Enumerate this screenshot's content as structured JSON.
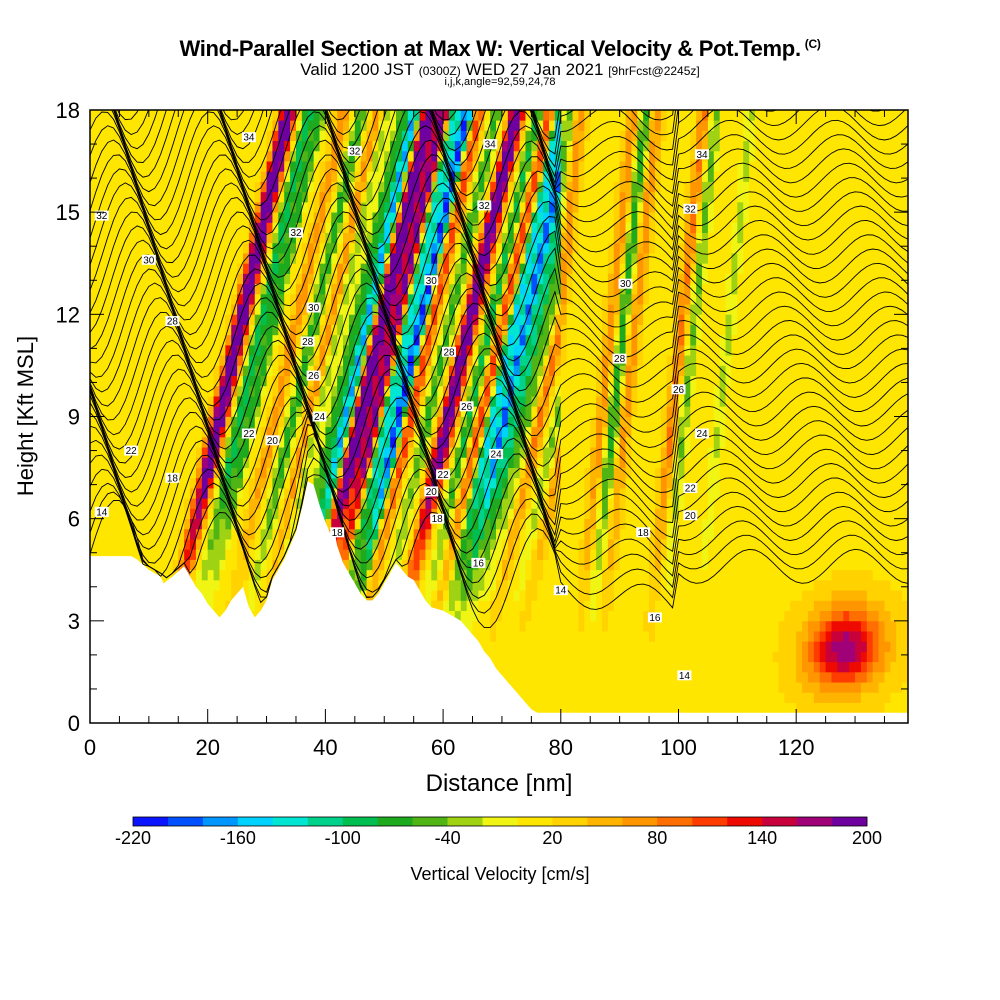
{
  "title": {
    "main": "Wind-Parallel Section at Max W: Vertical Velocity & Pot.Temp.",
    "copyright": "(C)",
    "valid_prefix": "Valid 1200 JST",
    "valid_z": "(0300Z)",
    "valid_date": "WED 27 Jan 2021",
    "forecast": "[9hrFcst@2245z]",
    "indices": "i,j,k,angle=92,59,24,78"
  },
  "chart_data": {
    "type": "heatmap",
    "xlabel": "Distance [nm]",
    "ylabel": "Height [Kft MSL]",
    "xlim": [
      0,
      139
    ],
    "ylim": [
      0,
      18
    ],
    "xticks": [
      0,
      20,
      40,
      60,
      80,
      100,
      120
    ],
    "yticks": [
      0,
      3,
      6,
      9,
      12,
      15,
      18
    ],
    "colorbar": {
      "label": "Vertical Velocity [cm/s]",
      "min": -220,
      "max": 200,
      "step": 20,
      "tick_labels": [
        "-220",
        "-160",
        "-100",
        "-40",
        "20",
        "80",
        "140",
        "200"
      ],
      "tick_values": [
        -220,
        -160,
        -100,
        -40,
        20,
        80,
        140,
        200
      ],
      "colors": [
        "#0a14ff",
        "#0050ff",
        "#0096ff",
        "#00d2ff",
        "#00e6d2",
        "#00d28c",
        "#00be50",
        "#1eaa1e",
        "#50b414",
        "#a0d214",
        "#f0f514",
        "#ffe600",
        "#ffd200",
        "#ffb400",
        "#ff9600",
        "#ff6e00",
        "#ff3c00",
        "#ee0a00",
        "#c8003c",
        "#a00078",
        "#6e00a0"
      ]
    },
    "terrain_profile": [
      [
        0,
        4.9
      ],
      [
        7,
        4.9
      ],
      [
        8,
        4.8
      ],
      [
        10,
        4.5
      ],
      [
        12,
        4.3
      ],
      [
        12.5,
        4.1
      ],
      [
        14,
        4.3
      ],
      [
        16,
        4.6
      ],
      [
        18,
        4.0
      ],
      [
        19,
        3.8
      ],
      [
        20,
        3.5
      ],
      [
        21,
        3.3
      ],
      [
        22,
        3.1
      ],
      [
        23,
        3.3
      ],
      [
        24,
        3.6
      ],
      [
        26,
        4.0
      ],
      [
        27,
        3.4
      ],
      [
        28,
        3.1
      ],
      [
        29,
        3.3
      ],
      [
        30,
        3.6
      ],
      [
        31,
        4.2
      ],
      [
        33,
        4.8
      ],
      [
        35,
        5.6
      ],
      [
        36,
        6.3
      ],
      [
        37,
        7.1
      ],
      [
        38,
        7.0
      ],
      [
        39,
        6.4
      ],
      [
        40,
        5.9
      ],
      [
        41,
        5.5
      ],
      [
        41.5,
        5.7
      ],
      [
        42,
        5.2
      ],
      [
        43,
        4.7
      ],
      [
        44,
        4.4
      ],
      [
        45,
        4.1
      ],
      [
        46,
        3.8
      ],
      [
        47,
        3.6
      ],
      [
        48,
        3.6
      ],
      [
        49,
        3.8
      ],
      [
        50,
        4.1
      ],
      [
        51,
        4.4
      ],
      [
        52,
        4.7
      ],
      [
        53,
        4.5
      ],
      [
        54,
        4.3
      ],
      [
        55,
        4.2
      ],
      [
        56,
        3.9
      ],
      [
        57,
        3.6
      ],
      [
        58,
        3.4
      ],
      [
        60,
        3.3
      ],
      [
        61,
        3.2
      ],
      [
        62,
        3.1
      ],
      [
        63,
        3.0
      ],
      [
        64,
        2.8
      ],
      [
        65,
        2.6
      ],
      [
        66,
        2.4
      ],
      [
        67,
        2.1
      ],
      [
        68,
        1.9
      ],
      [
        69,
        1.6
      ],
      [
        70,
        1.4
      ],
      [
        71,
        1.2
      ],
      [
        72,
        1.0
      ],
      [
        73,
        0.8
      ],
      [
        74,
        0.6
      ],
      [
        75,
        0.4
      ],
      [
        76,
        0.3
      ],
      [
        139,
        0.3
      ]
    ],
    "w_features": [
      {
        "x": 15,
        "w": 130
      },
      {
        "x": 16,
        "w": 160
      },
      {
        "x": 19,
        "w": -110
      },
      {
        "x": 21,
        "w": -90
      },
      {
        "x": 25,
        "w": 60
      },
      {
        "x": 28,
        "w": -90
      },
      {
        "x": 31,
        "w": 80
      },
      {
        "x": 32,
        "w": -70
      },
      {
        "x": 35,
        "w": -90
      },
      {
        "x": 37,
        "w": -180
      },
      {
        "x": 39,
        "w": 140
      },
      {
        "x": 40,
        "w": 160
      },
      {
        "x": 42,
        "w": 180
      },
      {
        "x": 44,
        "w": -150
      },
      {
        "x": 46,
        "w": -220
      },
      {
        "x": 48,
        "w": 100
      },
      {
        "x": 51,
        "w": -80
      },
      {
        "x": 54,
        "w": 150
      },
      {
        "x": 55,
        "w": 120
      },
      {
        "x": 58,
        "w": -100
      },
      {
        "x": 60,
        "w": 100
      },
      {
        "x": 62,
        "w": -160
      },
      {
        "x": 64,
        "w": -200
      },
      {
        "x": 66,
        "w": -120
      },
      {
        "x": 68,
        "w": -60
      },
      {
        "x": 70,
        "w": 70
      },
      {
        "x": 73,
        "w": -60
      },
      {
        "x": 75,
        "w": 60
      },
      {
        "x": 84,
        "w": 60
      },
      {
        "x": 86,
        "w": -90
      },
      {
        "x": 88,
        "w": 60
      },
      {
        "x": 96,
        "w": 70
      },
      {
        "x": 98,
        "w": -60
      },
      {
        "x": 104,
        "w": -40
      },
      {
        "x": 128,
        "w": 90
      },
      {
        "x": 131,
        "w": 80
      }
    ],
    "theta_contour_labels": [
      {
        "text": "34",
        "x": 27,
        "y": 17.2
      },
      {
        "text": "32",
        "x": 45,
        "y": 16.8
      },
      {
        "text": "34",
        "x": 68,
        "y": 17.0
      },
      {
        "text": "34",
        "x": 104,
        "y": 16.7
      },
      {
        "text": "32",
        "x": 2,
        "y": 14.9
      },
      {
        "text": "32",
        "x": 35,
        "y": 14.4
      },
      {
        "text": "32",
        "x": 67,
        "y": 15.2
      },
      {
        "text": "32",
        "x": 102,
        "y": 15.1
      },
      {
        "text": "30",
        "x": 10,
        "y": 13.6
      },
      {
        "text": "30",
        "x": 58,
        "y": 13.0
      },
      {
        "text": "30",
        "x": 91,
        "y": 12.9
      },
      {
        "text": "28",
        "x": 14,
        "y": 11.8
      },
      {
        "text": "30",
        "x": 38,
        "y": 12.2
      },
      {
        "text": "28",
        "x": 37,
        "y": 11.2
      },
      {
        "text": "28",
        "x": 61,
        "y": 10.9
      },
      {
        "text": "28",
        "x": 90,
        "y": 10.7
      },
      {
        "text": "26",
        "x": 38,
        "y": 10.2
      },
      {
        "text": "26",
        "x": 64,
        "y": 9.3
      },
      {
        "text": "26",
        "x": 100,
        "y": 9.8
      },
      {
        "text": "24",
        "x": 39,
        "y": 9.0
      },
      {
        "text": "24",
        "x": 69,
        "y": 7.9
      },
      {
        "text": "24",
        "x": 104,
        "y": 8.5
      },
      {
        "text": "22",
        "x": 7,
        "y": 8.0
      },
      {
        "text": "22",
        "x": 27,
        "y": 8.5
      },
      {
        "text": "20",
        "x": 31,
        "y": 8.3
      },
      {
        "text": "22",
        "x": 60,
        "y": 7.3
      },
      {
        "text": "22",
        "x": 102,
        "y": 6.9
      },
      {
        "text": "18",
        "x": 14,
        "y": 7.2
      },
      {
        "text": "20",
        "x": 58,
        "y": 6.8
      },
      {
        "text": "20",
        "x": 102,
        "y": 6.1
      },
      {
        "text": "14",
        "x": 2,
        "y": 6.2
      },
      {
        "text": "18",
        "x": 59,
        "y": 6.0
      },
      {
        "text": "18",
        "x": 94,
        "y": 5.6
      },
      {
        "text": "18",
        "x": 42,
        "y": 5.6
      },
      {
        "text": "16",
        "x": 66,
        "y": 4.7
      },
      {
        "text": "16",
        "x": 96,
        "y": 3.1
      },
      {
        "text": "14",
        "x": 80,
        "y": 3.9
      },
      {
        "text": "14",
        "x": 101,
        "y": 1.4
      }
    ]
  }
}
